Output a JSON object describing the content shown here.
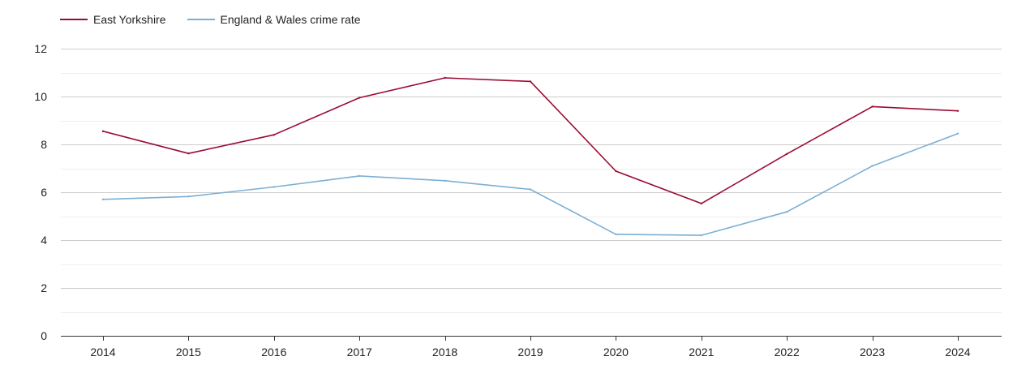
{
  "chart_data": {
    "type": "line",
    "title": "",
    "xlabel": "",
    "ylabel": "",
    "x": [
      "2014",
      "2015",
      "2016",
      "2017",
      "2018",
      "2019",
      "2020",
      "2021",
      "2022",
      "2023",
      "2024"
    ],
    "ylim": [
      0,
      12
    ],
    "yticks": [
      "0",
      "2",
      "4",
      "6",
      "8",
      "10",
      "12"
    ],
    "grid": true,
    "legend_position": "top-left",
    "series": [
      {
        "name": "East Yorkshire",
        "color": "#9b0b32",
        "values": [
          8.55,
          7.62,
          8.4,
          9.95,
          10.78,
          10.63,
          6.88,
          5.53,
          7.6,
          9.58,
          9.4
        ]
      },
      {
        "name": "England & Wales crime rate",
        "color": "#7bafd4",
        "values": [
          5.7,
          5.82,
          6.22,
          6.68,
          6.48,
          6.12,
          4.24,
          4.2,
          5.18,
          7.1,
          8.45
        ]
      }
    ]
  }
}
